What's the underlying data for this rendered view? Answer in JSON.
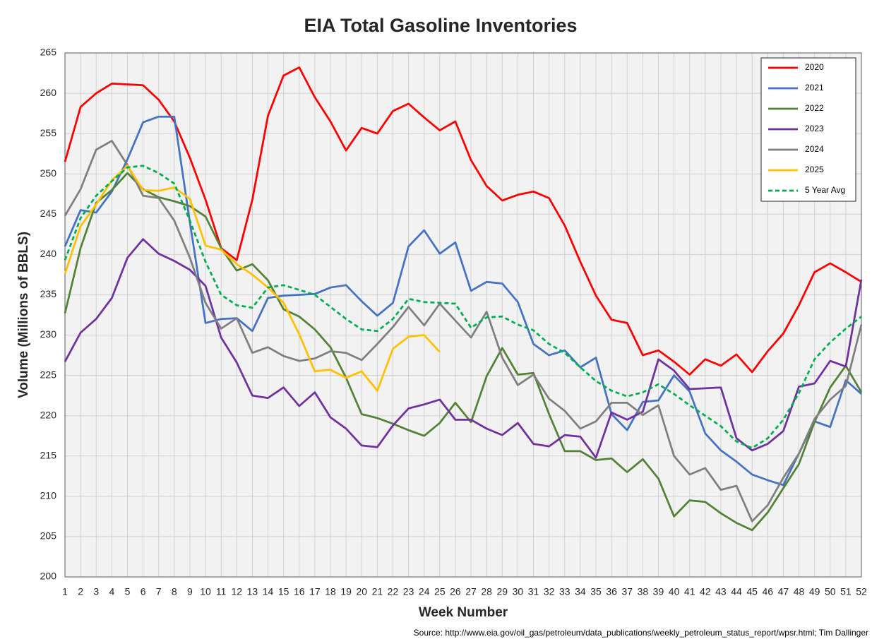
{
  "chart_data": {
    "type": "line",
    "title": "EIA Total Gasoline Inventories",
    "x_label": "Week Number",
    "y_label": "Volume (Millions of BBLS)",
    "source": "Source: http://www.eia.gov/oil_gas/petroleum/data_publications/weekly_petroleum_status_report/wpsr.html; Tim Dallinger",
    "x": [
      1,
      2,
      3,
      4,
      5,
      6,
      7,
      8,
      9,
      10,
      11,
      12,
      13,
      14,
      15,
      16,
      17,
      18,
      19,
      20,
      21,
      22,
      23,
      24,
      25,
      26,
      27,
      28,
      29,
      30,
      31,
      32,
      33,
      34,
      35,
      36,
      37,
      38,
      39,
      40,
      41,
      42,
      43,
      44,
      45,
      46,
      47,
      48,
      49,
      50,
      51,
      52
    ],
    "xlim": [
      1,
      52
    ],
    "xticks": [
      1,
      2,
      3,
      4,
      5,
      6,
      7,
      8,
      9,
      10,
      11,
      12,
      13,
      14,
      15,
      16,
      17,
      18,
      19,
      20,
      21,
      22,
      23,
      24,
      25,
      26,
      27,
      28,
      29,
      30,
      31,
      32,
      33,
      34,
      35,
      36,
      37,
      38,
      39,
      40,
      41,
      42,
      43,
      44,
      45,
      46,
      47,
      48,
      49,
      50,
      51,
      52
    ],
    "ylim": [
      200,
      265
    ],
    "yticks": [
      200,
      205,
      210,
      215,
      220,
      225,
      230,
      235,
      240,
      245,
      250,
      255,
      260,
      265
    ],
    "grid": true,
    "legend": "upper right",
    "series": [
      {
        "name": "2020",
        "color": "#ff0000",
        "dash": false,
        "values": [
          251.5,
          258.3,
          260,
          261.2,
          261.1,
          261,
          259.2,
          256.5,
          252,
          246.8,
          240.8,
          239.3,
          246.8,
          257.2,
          262.2,
          263.2,
          259.5,
          256.5,
          252.9,
          255.7,
          255,
          257.8,
          258.7,
          257,
          255.4,
          256.5,
          251.7,
          248.5,
          246.7,
          247.4,
          247.8,
          247,
          243.6,
          239.1,
          234.9,
          231.9,
          231.5,
          227.5,
          228.1,
          226.7,
          225.1,
          227,
          226.2,
          227.6,
          225.4,
          228,
          230.2,
          233.7,
          237.8,
          238.9,
          237.8,
          236.6
        ]
      },
      {
        "name": "2021",
        "color": "#4472c4",
        "dash": false,
        "values": [
          241,
          245.5,
          245.2,
          247.8,
          251.8,
          256.4,
          257.1,
          257.1,
          244,
          231.5,
          232,
          232.1,
          230.5,
          234.6,
          234.9,
          235,
          235.1,
          235.9,
          236.2,
          234.2,
          232.4,
          234,
          241,
          243,
          240.1,
          241.5,
          235.5,
          236.6,
          236.4,
          234.1,
          228.9,
          227.5,
          228.1,
          226,
          227.2,
          220.2,
          218.2,
          221.7,
          221.9,
          225,
          223,
          217.8,
          215.7,
          214.3,
          212.7,
          212,
          211.4,
          215.3,
          219.3,
          218.6,
          224.4,
          222.7
        ]
      },
      {
        "name": "2022",
        "color": "#548235",
        "dash": false,
        "values": [
          232.7,
          240.8,
          246.4,
          248,
          250.1,
          248.1,
          247.1,
          246.6,
          246,
          244.7,
          240.8,
          238,
          238.8,
          236.8,
          233.2,
          232.3,
          230.7,
          228.5,
          224.7,
          220.2,
          219.7,
          219,
          218.2,
          217.5,
          219.1,
          221.6,
          219.2,
          224.9,
          228.4,
          225.1,
          225.3,
          220.2,
          215.6,
          215.6,
          214.5,
          214.7,
          213,
          214.6,
          212.2,
          207.5,
          209.5,
          209.3,
          207.9,
          206.7,
          205.8,
          208,
          211,
          214,
          219.2,
          223.5,
          226.2,
          222.9
        ]
      },
      {
        "name": "2023",
        "color": "#7030a0",
        "dash": false,
        "values": [
          226.7,
          230.3,
          232,
          234.6,
          239.6,
          241.9,
          240.1,
          239.2,
          238.1,
          236.1,
          229.7,
          226.6,
          222.5,
          222.2,
          223.5,
          221.2,
          222.9,
          219.8,
          218.4,
          216.3,
          216.1,
          218.8,
          220.9,
          221.4,
          222,
          219.5,
          219.5,
          218.4,
          217.6,
          219.1,
          216.5,
          216.2,
          217.6,
          217.4,
          214.8,
          220.4,
          219.5,
          220.5,
          227,
          225.6,
          223.3,
          223.4,
          223.5,
          217.2,
          215.7,
          216.5,
          218.1,
          223.6,
          224,
          226.8,
          226.1,
          236.9
        ]
      },
      {
        "name": "2024",
        "color": "#7f7f7f",
        "dash": false,
        "values": [
          244.8,
          248.1,
          253,
          254.1,
          251.1,
          247.3,
          247,
          244.2,
          239.6,
          234,
          230.8,
          232.1,
          227.8,
          228.5,
          227.4,
          226.8,
          227.1,
          228,
          227.8,
          226.9,
          228.9,
          231,
          233.5,
          231.2,
          233.9,
          231.8,
          229.7,
          232.9,
          227.2,
          223.8,
          225.1,
          222.1,
          220.6,
          218.4,
          219.3,
          221.6,
          221.6,
          220.1,
          221.3,
          215,
          212.7,
          213.5,
          210.8,
          211.3,
          206.9,
          208.9,
          212.3,
          215.3,
          219.6,
          222,
          223.7,
          231.3
        ]
      },
      {
        "name": "2025",
        "color": "#ffc000",
        "dash": false,
        "values": [
          237.6,
          243.5,
          246.2,
          249.2,
          251,
          248,
          247.9,
          248.3,
          246.9,
          241.1,
          240.6,
          238.8,
          237.5,
          235.9,
          234,
          230.1,
          225.5,
          225.7,
          224.7,
          225.5,
          223.1,
          228.3,
          229.8,
          230,
          227.9,
          null,
          null,
          null,
          null,
          null,
          null,
          null,
          null,
          null,
          null,
          null,
          null,
          null,
          null,
          null,
          null,
          null,
          null,
          null,
          null,
          null,
          null,
          null,
          null,
          null,
          null,
          null
        ]
      },
      {
        "name": "5 Year Avg",
        "color": "#00b050",
        "dash": true,
        "values": [
          239.3,
          244.5,
          247.3,
          249.1,
          250.8,
          251,
          250.1,
          248.8,
          244.2,
          239.1,
          235,
          233.7,
          233.4,
          235.9,
          236.2,
          235.6,
          235,
          233.5,
          232,
          230.7,
          230.5,
          232,
          234.5,
          234.1,
          234,
          233.9,
          230.9,
          232.2,
          232.3,
          231.3,
          230.6,
          228.9,
          227.8,
          226,
          224.3,
          223.1,
          222.4,
          222.9,
          223.9,
          222.7,
          221.3,
          220,
          218.7,
          216.8,
          216,
          217.2,
          219.5,
          222.8,
          227,
          229.1,
          230.8,
          232.3
        ]
      }
    ]
  }
}
